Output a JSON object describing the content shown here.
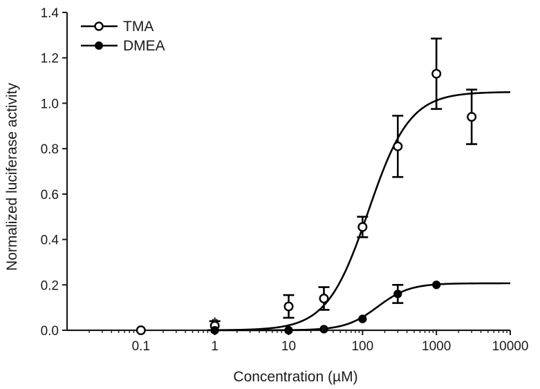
{
  "chart_data": {
    "type": "scatter",
    "xscale": "log",
    "xlim": [
      0.01,
      10000
    ],
    "ylim": [
      0.0,
      1.4
    ],
    "xlabel": "Concentration (µM)",
    "ylabel": "Normalized luciferase activity",
    "xticks": [
      "0.1",
      "1",
      "10",
      "100",
      "1000",
      "10000"
    ],
    "yticks": [
      "0.0",
      "0.2",
      "0.4",
      "0.6",
      "0.8",
      "1.0",
      "1.2",
      "1.4"
    ],
    "legend_position": "top-left",
    "grid": false,
    "series": [
      {
        "name": "TMA",
        "marker": "open-circle",
        "color": "#000000",
        "points": [
          {
            "x": 0.1,
            "y": 0.0,
            "err": 0.0
          },
          {
            "x": 1,
            "y": 0.02,
            "err": 0.02
          },
          {
            "x": 10,
            "y": 0.105,
            "err": 0.05
          },
          {
            "x": 30,
            "y": 0.14,
            "err": 0.05
          },
          {
            "x": 100,
            "y": 0.455,
            "err": 0.045
          },
          {
            "x": 300,
            "y": 0.81,
            "err": 0.135
          },
          {
            "x": 1000,
            "y": 1.13,
            "err": 0.155
          },
          {
            "x": 3000,
            "y": 0.94,
            "err": 0.12
          }
        ],
        "fit": {
          "bottom": 0.0,
          "top": 1.05,
          "ec50": 120,
          "hill": 1.55
        }
      },
      {
        "name": "DMEA",
        "marker": "filled-circle",
        "color": "#000000",
        "points": [
          {
            "x": 1,
            "y": 0.0,
            "err": 0.0
          },
          {
            "x": 10,
            "y": 0.0,
            "err": 0.0
          },
          {
            "x": 30,
            "y": 0.005,
            "err": 0.0
          },
          {
            "x": 100,
            "y": 0.05,
            "err": 0.0
          },
          {
            "x": 300,
            "y": 0.16,
            "err": 0.04
          },
          {
            "x": 1000,
            "y": 0.2,
            "err": 0.0
          }
        ],
        "fit": {
          "bottom": 0.0,
          "top": 0.207,
          "ec50": 160,
          "hill": 2.0
        }
      }
    ],
    "annotations": [
      {
        "text": "*",
        "x": 1,
        "y": 0.045
      },
      {
        "text": "*",
        "x": 30,
        "y": 0.01
      }
    ]
  }
}
